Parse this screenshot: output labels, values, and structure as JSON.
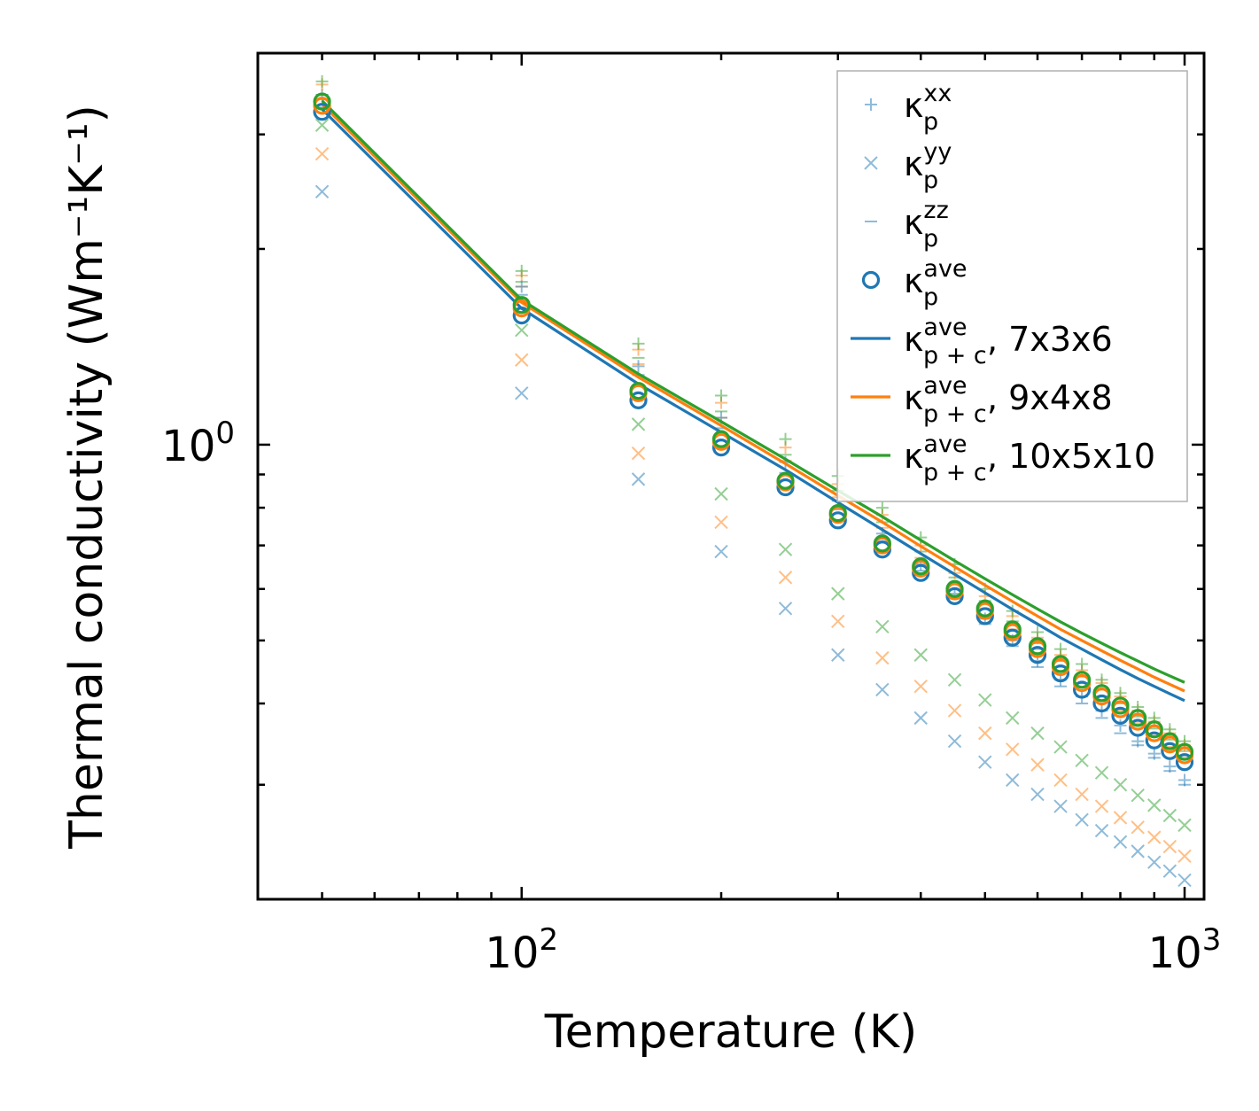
{
  "chart_data": {
    "type": "scatter",
    "xscale": "log",
    "yscale": "log",
    "xlabel": "Temperature (K)",
    "ylabel": "Thermal conductivity (Wm⁻¹K⁻¹)",
    "xlim": [
      40,
      1070
    ],
    "ylim": [
      0.2,
      4.0
    ],
    "xticks": [
      {
        "value": 100,
        "base": "10",
        "exp": "2"
      },
      {
        "value": 1000,
        "base": "10",
        "exp": "3"
      }
    ],
    "yticks": [
      {
        "value": 1,
        "base": "10",
        "exp": "0"
      }
    ],
    "x": [
      50,
      100,
      150,
      200,
      250,
      300,
      350,
      400,
      450,
      500,
      550,
      600,
      650,
      700,
      750,
      800,
      850,
      900,
      950,
      1000
    ],
    "colors": {
      "blue": "#1f77b4",
      "orange": "#ff7f0e",
      "green": "#2ca02c",
      "brown": "#8c564b"
    },
    "grid": false,
    "series": [
      {
        "name": "kxx 7x3x6",
        "marker": "plus",
        "color": "#1f77b4",
        "alpha": 0.5,
        "values": [
          3.45,
          1.75,
          1.32,
          1.1,
          0.94,
          0.82,
          0.73,
          0.655,
          0.59,
          0.54,
          0.5,
          0.465,
          0.435,
          0.41,
          0.39,
          0.37,
          0.35,
          0.335,
          0.32,
          0.305
        ]
      },
      {
        "name": "kyy 7x3x6",
        "marker": "x",
        "color": "#1f77b4",
        "alpha": 0.5,
        "values": [
          2.45,
          1.2,
          0.885,
          0.685,
          0.56,
          0.475,
          0.42,
          0.38,
          0.35,
          0.325,
          0.305,
          0.29,
          0.278,
          0.265,
          0.255,
          0.245,
          0.237,
          0.228,
          0.221,
          0.214
        ]
      },
      {
        "name": "kzz 7x3x6",
        "marker": "minus",
        "color": "#1f77b4",
        "alpha": 0.5,
        "values": [
          3.3,
          1.7,
          1.28,
          1.06,
          0.905,
          0.795,
          0.71,
          0.64,
          0.58,
          0.53,
          0.49,
          0.455,
          0.425,
          0.4,
          0.38,
          0.36,
          0.345,
          0.33,
          0.315,
          0.3
        ]
      },
      {
        "name": "kxx 9x4x8",
        "marker": "plus",
        "color": "#ff7f0e",
        "alpha": 0.5,
        "values": [
          3.58,
          1.82,
          1.4,
          1.16,
          0.99,
          0.87,
          0.78,
          0.7,
          0.635,
          0.585,
          0.545,
          0.505,
          0.475,
          0.45,
          0.43,
          0.41,
          0.39,
          0.375,
          0.36,
          0.345
        ]
      },
      {
        "name": "kyy 9x4x8",
        "marker": "x",
        "color": "#ff7f0e",
        "alpha": 0.5,
        "values": [
          2.8,
          1.35,
          0.97,
          0.76,
          0.625,
          0.535,
          0.47,
          0.425,
          0.39,
          0.36,
          0.34,
          0.322,
          0.305,
          0.29,
          0.278,
          0.267,
          0.258,
          0.249,
          0.241,
          0.233
        ]
      },
      {
        "name": "kzz 9x4x8",
        "marker": "minus",
        "color": "#ff7f0e",
        "alpha": 0.5,
        "values": [
          3.4,
          1.75,
          1.33,
          1.1,
          0.945,
          0.83,
          0.745,
          0.67,
          0.61,
          0.56,
          0.52,
          0.485,
          0.455,
          0.43,
          0.41,
          0.39,
          0.373,
          0.357,
          0.343,
          0.33
        ]
      },
      {
        "name": "kxx 10x5x10",
        "marker": "plus",
        "color": "#2ca02c",
        "alpha": 0.5,
        "values": [
          3.62,
          1.85,
          1.43,
          1.19,
          1.02,
          0.895,
          0.8,
          0.72,
          0.655,
          0.6,
          0.555,
          0.515,
          0.485,
          0.46,
          0.435,
          0.415,
          0.395,
          0.38,
          0.365,
          0.35
        ]
      },
      {
        "name": "kyy 10x5x10",
        "marker": "x",
        "color": "#2ca02c",
        "alpha": 0.5,
        "values": [
          3.1,
          1.5,
          1.075,
          0.84,
          0.69,
          0.59,
          0.525,
          0.475,
          0.435,
          0.405,
          0.38,
          0.36,
          0.343,
          0.327,
          0.313,
          0.3,
          0.289,
          0.279,
          0.269,
          0.26
        ]
      },
      {
        "name": "kzz 10x5x10",
        "marker": "minus",
        "color": "#2ca02c",
        "alpha": 0.5,
        "values": [
          3.45,
          1.78,
          1.36,
          1.125,
          0.965,
          0.85,
          0.76,
          0.685,
          0.625,
          0.575,
          0.535,
          0.495,
          0.465,
          0.44,
          0.42,
          0.4,
          0.382,
          0.366,
          0.352,
          0.338
        ]
      },
      {
        "name": "kave 7x3x6",
        "marker": "circle",
        "color": "#1f77b4",
        "alpha": 1,
        "values": [
          3.25,
          1.58,
          1.17,
          0.99,
          0.86,
          0.765,
          0.69,
          0.635,
          0.585,
          0.545,
          0.505,
          0.475,
          0.445,
          0.42,
          0.4,
          0.383,
          0.367,
          0.351,
          0.338,
          0.325
        ]
      },
      {
        "name": "kave 9x4x8",
        "marker": "circle",
        "color": "#ff7f0e",
        "alpha": 1,
        "values": [
          3.32,
          1.62,
          1.2,
          1.01,
          0.875,
          0.78,
          0.7,
          0.645,
          0.595,
          0.555,
          0.515,
          0.485,
          0.455,
          0.43,
          0.41,
          0.392,
          0.375,
          0.36,
          0.346,
          0.333
        ]
      },
      {
        "name": "kave 10x5x10",
        "marker": "circle",
        "color": "#2ca02c",
        "alpha": 1,
        "values": [
          3.37,
          1.64,
          1.21,
          1.02,
          0.88,
          0.785,
          0.705,
          0.65,
          0.6,
          0.56,
          0.52,
          0.49,
          0.46,
          0.435,
          0.415,
          0.397,
          0.38,
          0.365,
          0.35,
          0.337
        ]
      },
      {
        "name": "kp+c 7x3x6",
        "marker": "line",
        "color": "#1f77b4",
        "alpha": 1,
        "values": [
          3.28,
          1.62,
          1.24,
          1.045,
          0.915,
          0.815,
          0.74,
          0.68,
          0.632,
          0.592,
          0.558,
          0.53,
          0.505,
          0.485,
          0.467,
          0.451,
          0.437,
          0.425,
          0.414,
          0.404
        ]
      },
      {
        "name": "kp+c 9x4x8",
        "marker": "line",
        "color": "#ff7f0e",
        "alpha": 1,
        "values": [
          3.34,
          1.655,
          1.27,
          1.07,
          0.935,
          0.835,
          0.76,
          0.698,
          0.649,
          0.608,
          0.574,
          0.545,
          0.52,
          0.5,
          0.482,
          0.466,
          0.452,
          0.439,
          0.428,
          0.418
        ]
      },
      {
        "name": "kp+c 10x5x10",
        "marker": "line",
        "color": "#2ca02c",
        "alpha": 1,
        "values": [
          3.38,
          1.67,
          1.285,
          1.085,
          0.95,
          0.85,
          0.775,
          0.713,
          0.663,
          0.622,
          0.588,
          0.559,
          0.534,
          0.513,
          0.495,
          0.479,
          0.465,
          0.452,
          0.441,
          0.431
        ]
      }
    ],
    "legend": {
      "position": "upper right",
      "entries": [
        {
          "marker": "plus",
          "color": "#1f77b4",
          "sym": "κ",
          "sub": "p",
          "sup": "xx",
          "suffix": ""
        },
        {
          "marker": "x",
          "color": "#1f77b4",
          "sym": "κ",
          "sub": "p",
          "sup": "yy",
          "suffix": ""
        },
        {
          "marker": "minus",
          "color": "#1f77b4",
          "sym": "κ",
          "sub": "p",
          "sup": "zz",
          "suffix": ""
        },
        {
          "marker": "circle",
          "color": "#1f77b4",
          "sym": "κ",
          "sub": "p",
          "sup": "ave",
          "suffix": ""
        },
        {
          "marker": "line",
          "color": "#1f77b4",
          "sym": "κ",
          "sub": "p + c",
          "sup": "ave",
          "suffix": ", 7x3x6"
        },
        {
          "marker": "line",
          "color": "#ff7f0e",
          "sym": "κ",
          "sub": "p + c",
          "sup": "ave",
          "suffix": ", 9x4x8"
        },
        {
          "marker": "line",
          "color": "#2ca02c",
          "sym": "κ",
          "sub": "p + c",
          "sup": "ave",
          "suffix": ", 10x5x10"
        }
      ]
    }
  }
}
